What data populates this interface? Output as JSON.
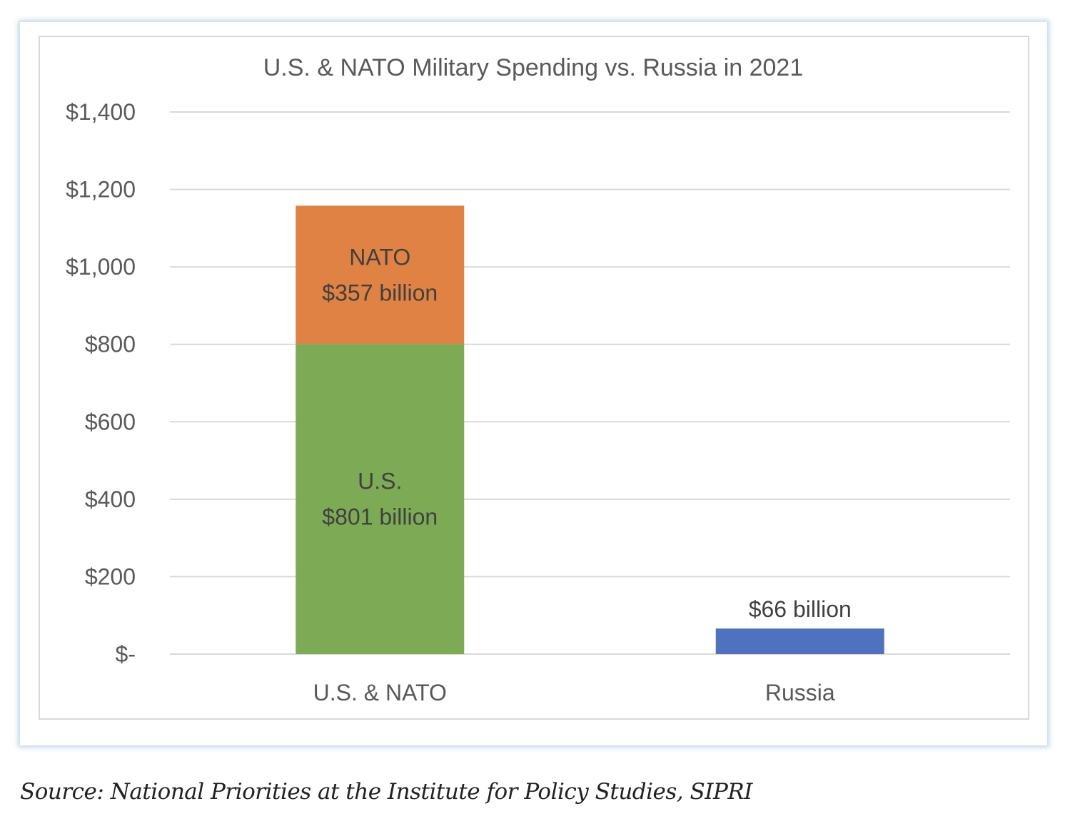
{
  "chart_data": {
    "type": "bar",
    "stacked": true,
    "title": "U.S. & NATO Military Spending vs. Russia in 2021",
    "xlabel": "",
    "ylabel": "",
    "ylim": [
      0,
      1400
    ],
    "yticks": [
      0,
      200,
      400,
      600,
      800,
      1000,
      1200,
      1400
    ],
    "ytick_labels": [
      "$-",
      "$200",
      "$400",
      "$600",
      "$800",
      "$1,000",
      "$1,200",
      "$1,400"
    ],
    "grid": true,
    "legend": "none",
    "categories": [
      "U.S. & NATO",
      "Russia"
    ],
    "series": [
      {
        "name": "U.S.",
        "color": "#7DAB55",
        "values": [
          801,
          0
        ],
        "labels": [
          [
            "U.S.",
            "$801  billion"
          ],
          null
        ],
        "label_position": "center"
      },
      {
        "name": "NATO",
        "color": "#DF8244",
        "values": [
          357,
          0
        ],
        "labels": [
          [
            "NATO",
            "$357  billion"
          ],
          null
        ],
        "label_position": "center"
      },
      {
        "name": "Russia",
        "color": "#4E72BE",
        "values": [
          0,
          66
        ],
        "labels": [
          null,
          [
            "$66  billion"
          ]
        ],
        "label_position": "above"
      }
    ]
  },
  "source_note": "Source: National Priorities at the Institute for Policy Studies, SIPRI"
}
